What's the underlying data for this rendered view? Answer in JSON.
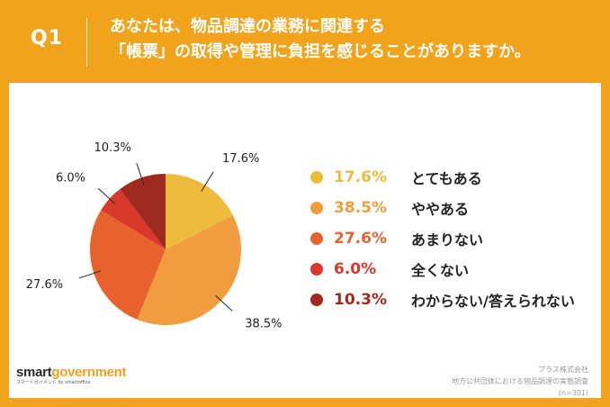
{
  "question": {
    "label": "Q1",
    "line1": "あなたは、物品調達の業務に関連する",
    "line2": "「帳票」の取得や管理に負担を感じることがありますか。"
  },
  "chart_data": {
    "type": "pie",
    "slices": [
      {
        "label": "とてもある",
        "value": 17.6,
        "display": "17.6%",
        "color": "#efbb3d"
      },
      {
        "label": "ややある",
        "value": 38.5,
        "display": "38.5%",
        "color": "#f19d3f"
      },
      {
        "label": "あまりない",
        "value": 27.6,
        "display": "27.6%",
        "color": "#e8622e"
      },
      {
        "label": "全くない",
        "value": 6.0,
        "display": "6.0%",
        "color": "#d9392a"
      },
      {
        "label": "わからない/答えられない",
        "value": 10.3,
        "display": "10.3%",
        "color": "#9f2a1f"
      }
    ],
    "legend_position": "right"
  },
  "logo": {
    "name_part1": "smart",
    "name_part2": "government",
    "sub": "スマートガバメント  by smartoffice"
  },
  "source": {
    "line1": "プラス株式会社",
    "line2": "地方公共団体における物品調達の実態調査",
    "line3": "(n=301)"
  }
}
